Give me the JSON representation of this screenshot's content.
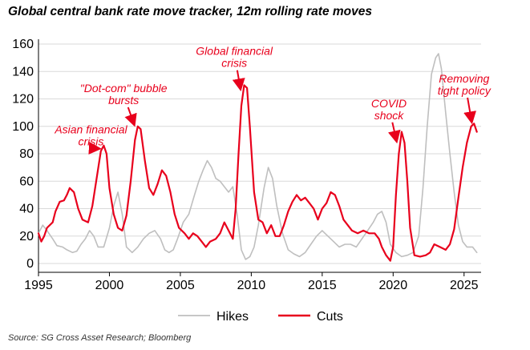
{
  "chart_data": {
    "type": "line",
    "title": "Global central bank rate move tracker, 12m rolling rate moves",
    "source": "Source: SG Cross Asset Research; Bloomberg",
    "xlim": [
      1995,
      2026.2
    ],
    "ylim": [
      0,
      160
    ],
    "x_ticks": [
      "1995",
      "2000",
      "2005",
      "2010",
      "2015",
      "2020",
      "2025"
    ],
    "y_ticks": [
      "0",
      "20",
      "40",
      "60",
      "80",
      "100",
      "120",
      "140",
      "160"
    ],
    "grid": true,
    "legend": "bottom-center",
    "series": [
      {
        "name": "Hikes",
        "color": "#bfbfbf",
        "points": [
          [
            1995.0,
            22
          ],
          [
            1995.3,
            28
          ],
          [
            1995.6,
            24
          ],
          [
            1996.0,
            18
          ],
          [
            1996.3,
            13
          ],
          [
            1996.7,
            12
          ],
          [
            1997.0,
            10
          ],
          [
            1997.4,
            8
          ],
          [
            1997.7,
            9
          ],
          [
            1998.0,
            14
          ],
          [
            1998.3,
            18
          ],
          [
            1998.6,
            24
          ],
          [
            1998.9,
            20
          ],
          [
            1999.2,
            12
          ],
          [
            1999.6,
            12
          ],
          [
            2000.0,
            26
          ],
          [
            2000.3,
            42
          ],
          [
            2000.6,
            52
          ],
          [
            2000.9,
            36
          ],
          [
            2001.2,
            12
          ],
          [
            2001.6,
            8
          ],
          [
            2002.0,
            12
          ],
          [
            2002.4,
            18
          ],
          [
            2002.8,
            22
          ],
          [
            2003.2,
            24
          ],
          [
            2003.6,
            18
          ],
          [
            2003.9,
            10
          ],
          [
            2004.2,
            8
          ],
          [
            2004.5,
            10
          ],
          [
            2004.8,
            18
          ],
          [
            2005.2,
            30
          ],
          [
            2005.6,
            36
          ],
          [
            2006.0,
            50
          ],
          [
            2006.3,
            60
          ],
          [
            2006.6,
            68
          ],
          [
            2006.9,
            75
          ],
          [
            2007.2,
            70
          ],
          [
            2007.5,
            62
          ],
          [
            2007.8,
            60
          ],
          [
            2008.1,
            56
          ],
          [
            2008.4,
            52
          ],
          [
            2008.7,
            56
          ],
          [
            2009.0,
            36
          ],
          [
            2009.3,
            10
          ],
          [
            2009.6,
            3
          ],
          [
            2009.9,
            5
          ],
          [
            2010.2,
            12
          ],
          [
            2010.5,
            28
          ],
          [
            2010.9,
            55
          ],
          [
            2011.2,
            70
          ],
          [
            2011.5,
            62
          ],
          [
            2011.8,
            42
          ],
          [
            2012.2,
            22
          ],
          [
            2012.6,
            10
          ],
          [
            2013.0,
            7
          ],
          [
            2013.4,
            5
          ],
          [
            2013.8,
            8
          ],
          [
            2014.2,
            14
          ],
          [
            2014.6,
            20
          ],
          [
            2015.0,
            24
          ],
          [
            2015.4,
            20
          ],
          [
            2015.8,
            16
          ],
          [
            2016.2,
            12
          ],
          [
            2016.6,
            14
          ],
          [
            2017.0,
            14
          ],
          [
            2017.4,
            12
          ],
          [
            2017.8,
            18
          ],
          [
            2018.2,
            24
          ],
          [
            2018.6,
            30
          ],
          [
            2018.9,
            36
          ],
          [
            2019.2,
            38
          ],
          [
            2019.5,
            30
          ],
          [
            2019.8,
            14
          ],
          [
            2020.2,
            8
          ],
          [
            2020.6,
            5
          ],
          [
            2021.0,
            6
          ],
          [
            2021.4,
            8
          ],
          [
            2021.8,
            20
          ],
          [
            2022.1,
            55
          ],
          [
            2022.4,
            100
          ],
          [
            2022.7,
            138
          ],
          [
            2023.0,
            150
          ],
          [
            2023.2,
            153
          ],
          [
            2023.4,
            142
          ],
          [
            2023.7,
            110
          ],
          [
            2024.0,
            80
          ],
          [
            2024.3,
            52
          ],
          [
            2024.6,
            28
          ],
          [
            2024.9,
            16
          ],
          [
            2025.2,
            12
          ],
          [
            2025.6,
            12
          ],
          [
            2025.9,
            8
          ]
        ]
      },
      {
        "name": "Cuts",
        "color": "#e8001c",
        "points": [
          [
            1995.0,
            22
          ],
          [
            1995.2,
            16
          ],
          [
            1995.4,
            20
          ],
          [
            1995.6,
            26
          ],
          [
            1996.0,
            30
          ],
          [
            1996.2,
            38
          ],
          [
            1996.5,
            45
          ],
          [
            1996.8,
            46
          ],
          [
            1997.0,
            50
          ],
          [
            1997.2,
            55
          ],
          [
            1997.5,
            52
          ],
          [
            1997.8,
            40
          ],
          [
            1998.1,
            32
          ],
          [
            1998.5,
            30
          ],
          [
            1998.8,
            42
          ],
          [
            1999.1,
            62
          ],
          [
            1999.4,
            82
          ],
          [
            1999.6,
            86
          ],
          [
            1999.8,
            80
          ],
          [
            2000.0,
            55
          ],
          [
            2000.3,
            36
          ],
          [
            2000.6,
            26
          ],
          [
            2000.9,
            24
          ],
          [
            2001.2,
            35
          ],
          [
            2001.5,
            60
          ],
          [
            2001.8,
            90
          ],
          [
            2002.0,
            100
          ],
          [
            2002.2,
            98
          ],
          [
            2002.5,
            75
          ],
          [
            2002.8,
            55
          ],
          [
            2003.1,
            50
          ],
          [
            2003.4,
            58
          ],
          [
            2003.7,
            68
          ],
          [
            2004.0,
            64
          ],
          [
            2004.3,
            52
          ],
          [
            2004.6,
            36
          ],
          [
            2004.9,
            26
          ],
          [
            2005.3,
            22
          ],
          [
            2005.6,
            18
          ],
          [
            2005.9,
            22
          ],
          [
            2006.2,
            20
          ],
          [
            2006.5,
            16
          ],
          [
            2006.8,
            12
          ],
          [
            2007.1,
            16
          ],
          [
            2007.5,
            18
          ],
          [
            2007.8,
            22
          ],
          [
            2008.1,
            30
          ],
          [
            2008.4,
            24
          ],
          [
            2008.7,
            18
          ],
          [
            2008.9,
            40
          ],
          [
            2009.1,
            80
          ],
          [
            2009.3,
            115
          ],
          [
            2009.5,
            130
          ],
          [
            2009.7,
            128
          ],
          [
            2009.9,
            100
          ],
          [
            2010.2,
            52
          ],
          [
            2010.5,
            32
          ],
          [
            2010.8,
            30
          ],
          [
            2011.1,
            22
          ],
          [
            2011.4,
            28
          ],
          [
            2011.7,
            20
          ],
          [
            2012.0,
            20
          ],
          [
            2012.3,
            28
          ],
          [
            2012.6,
            38
          ],
          [
            2012.9,
            45
          ],
          [
            2013.2,
            50
          ],
          [
            2013.5,
            46
          ],
          [
            2013.8,
            48
          ],
          [
            2014.1,
            44
          ],
          [
            2014.4,
            40
          ],
          [
            2014.7,
            32
          ],
          [
            2015.0,
            40
          ],
          [
            2015.3,
            44
          ],
          [
            2015.6,
            52
          ],
          [
            2015.9,
            50
          ],
          [
            2016.2,
            42
          ],
          [
            2016.5,
            32
          ],
          [
            2016.8,
            28
          ],
          [
            2017.1,
            24
          ],
          [
            2017.5,
            22
          ],
          [
            2017.9,
            24
          ],
          [
            2018.3,
            22
          ],
          [
            2018.7,
            22
          ],
          [
            2019.0,
            18
          ],
          [
            2019.2,
            12
          ],
          [
            2019.5,
            6
          ],
          [
            2019.8,
            2
          ],
          [
            2020.0,
            12
          ],
          [
            2020.2,
            50
          ],
          [
            2020.4,
            80
          ],
          [
            2020.6,
            96
          ],
          [
            2020.8,
            88
          ],
          [
            2021.0,
            60
          ],
          [
            2021.2,
            26
          ],
          [
            2021.5,
            6
          ],
          [
            2021.9,
            5
          ],
          [
            2022.3,
            6
          ],
          [
            2022.6,
            8
          ],
          [
            2022.9,
            14
          ],
          [
            2023.3,
            12
          ],
          [
            2023.7,
            10
          ],
          [
            2024.0,
            14
          ],
          [
            2024.3,
            25
          ],
          [
            2024.6,
            48
          ],
          [
            2024.9,
            70
          ],
          [
            2025.2,
            88
          ],
          [
            2025.5,
            100
          ],
          [
            2025.7,
            102
          ],
          [
            2025.9,
            96
          ]
        ]
      }
    ],
    "annotations": [
      {
        "lines": [
          "Asian financial",
          "crisis"
        ],
        "x": 1998.7,
        "y": 95,
        "arrow_to": [
          1999.4,
          82
        ]
      },
      {
        "lines": [
          "\"Dot-com\" bubble",
          "bursts"
        ],
        "x": 2001.0,
        "y": 125,
        "arrow_to": [
          2001.9,
          100
        ]
      },
      {
        "lines": [
          "Global financial",
          "crisis"
        ],
        "x": 2008.8,
        "y": 152,
        "arrow_to": [
          2009.4,
          126
        ]
      },
      {
        "lines": [
          "COVID",
          "shock"
        ],
        "x": 2019.7,
        "y": 114,
        "arrow_to": [
          2020.4,
          88
        ]
      },
      {
        "lines": [
          "Removing",
          "tight policy"
        ],
        "x": 2025.0,
        "y": 132,
        "arrow_to": [
          2025.7,
          102
        ]
      }
    ]
  }
}
